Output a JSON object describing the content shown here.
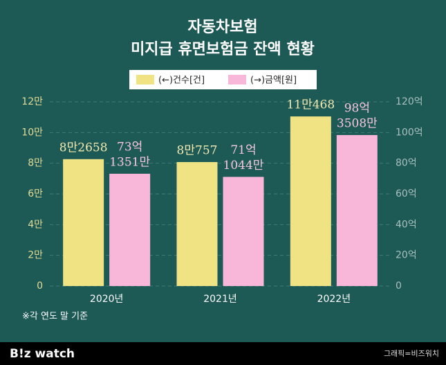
{
  "chart_data": {
    "type": "bar",
    "title": [
      "자동차보험",
      "미지급 휴면보험금 잔액 현황"
    ],
    "categories": [
      "2020년",
      "2021년",
      "2022년"
    ],
    "series": [
      {
        "name": "(←)건수[건]",
        "color": "#f0e384",
        "values": [
          82658,
          80757,
          110468
        ],
        "value_labels": [
          "8만2658",
          "8만757",
          "11만468"
        ]
      },
      {
        "name": "(→)금액[원]",
        "color": "#f8b6d8",
        "axis": "y2",
        "values": [
          73.1351,
          71.1044,
          98.3508
        ],
        "value_labels": [
          [
            "73억",
            "1351만"
          ],
          [
            "71억",
            "1044만"
          ],
          [
            "98억",
            "3508만"
          ]
        ]
      }
    ],
    "ylim": [
      0,
      120000
    ],
    "yticks": [
      0,
      {
        "value": 20000,
        "label": "2만"
      },
      {
        "value": 40000,
        "label": "4만"
      },
      {
        "value": 60000,
        "label": "6만"
      },
      {
        "value": 80000,
        "label": "8만"
      },
      {
        "value": 100000,
        "label": "10만"
      },
      {
        "value": 120000,
        "label": "12만"
      }
    ],
    "y2lim": [
      0,
      120
    ],
    "y2ticks": [
      0,
      {
        "value": 20,
        "label": "20억"
      },
      {
        "value": 40,
        "label": "40억"
      },
      {
        "value": 60,
        "label": "60억"
      },
      {
        "value": 80,
        "label": "80억"
      },
      {
        "value": 100,
        "label": "100억"
      },
      {
        "value": 120,
        "label": "120억"
      }
    ],
    "grid": true,
    "legend": "top",
    "note": "※각 연도 말 기준",
    "logo": "B!z watch",
    "source": "그래픽=비즈워치"
  }
}
